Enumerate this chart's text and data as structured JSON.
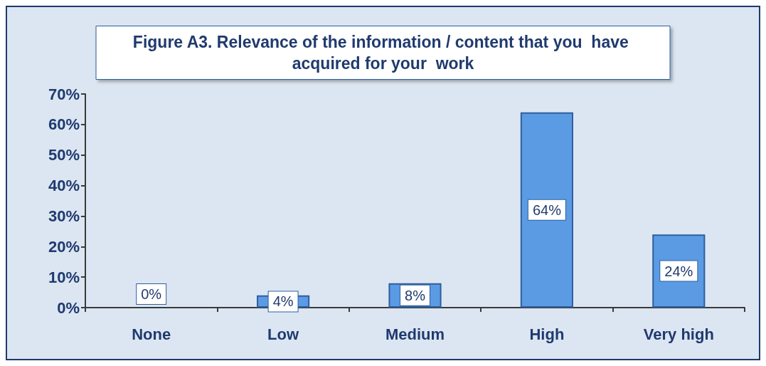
{
  "chart_data": {
    "type": "bar",
    "title": "Figure A3. Relevance of the information / content that you  have acquired for your  work",
    "categories": [
      "None",
      "Low",
      "Medium",
      "High",
      "Very high"
    ],
    "values": [
      0,
      4,
      8,
      64,
      24
    ],
    "value_labels": [
      "0%",
      "4%",
      "8%",
      "64%",
      "24%"
    ],
    "color": "#5b9be4",
    "ylim": [
      0,
      70
    ],
    "yticks": [
      {
        "value": 0,
        "label": "0%"
      },
      {
        "value": 10,
        "label": "10%"
      },
      {
        "value": 20,
        "label": "20%"
      },
      {
        "value": 30,
        "label": "30%"
      },
      {
        "value": 40,
        "label": "40%"
      },
      {
        "value": 50,
        "label": "50%"
      },
      {
        "value": 60,
        "label": "60%"
      },
      {
        "value": 70,
        "label": "70%"
      }
    ],
    "grid": false
  }
}
